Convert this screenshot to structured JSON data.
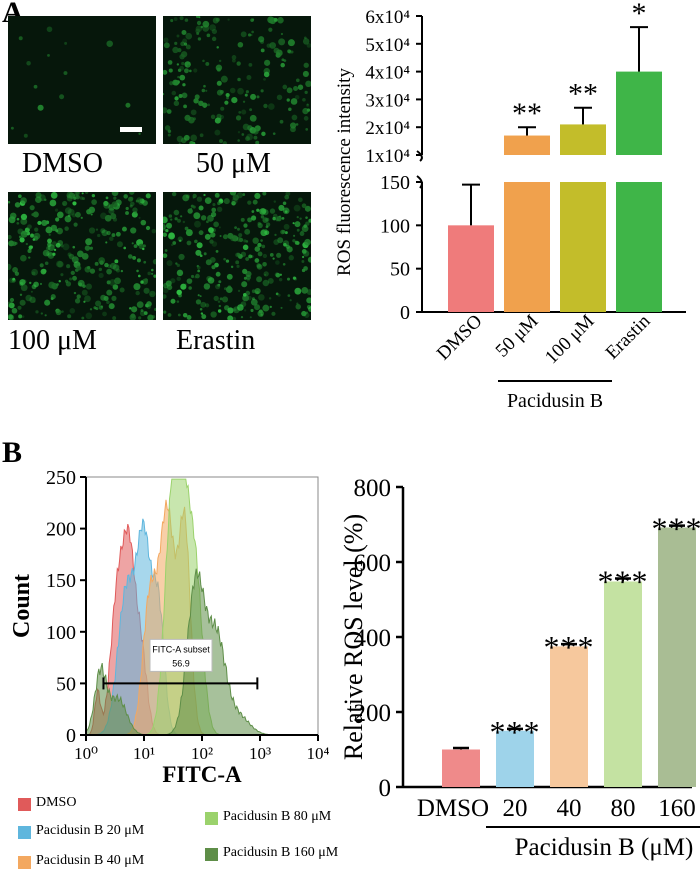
{
  "panelA": {
    "letter": "A",
    "images": [
      {
        "label": "DMSO",
        "density": 0.03,
        "scale_bar": true
      },
      {
        "label": "50 μM",
        "density": 0.55
      },
      {
        "label": "100 μM",
        "density": 0.8
      },
      {
        "label": "Erastin",
        "density": 0.85
      }
    ]
  },
  "panelB": {
    "letter": "B",
    "gate": {
      "label": "FITC-A subset",
      "value": "56.9"
    },
    "legend": [
      {
        "label": "DMSO",
        "color": "#e05a5a"
      },
      {
        "label": "Pacidusin B 20 μM",
        "color": "#5fb6dd"
      },
      {
        "label": "Pacidusin B 40 μM",
        "color": "#f3a860"
      },
      {
        "label": "Pacidusin B 80 μM",
        "color": "#9bd26c"
      },
      {
        "label": "Pacidusin B 160 μM",
        "color": "#5e8e48"
      }
    ]
  },
  "chart_data": [
    {
      "type": "bar",
      "id": "ros-intensity",
      "ylabel": "ROS fluorescence intensity",
      "categories": [
        "DMSO",
        "50 μM",
        "100 μM",
        "Erastin"
      ],
      "values": [
        100,
        17000,
        21000,
        40000
      ],
      "errors": [
        47,
        3000,
        6000,
        16000
      ],
      "colors": [
        "#ef7b7b",
        "#f0a14d",
        "#c3bd2a",
        "#3fb548"
      ],
      "significance": [
        "",
        "**",
        "**",
        "*"
      ],
      "lower_axis": {
        "ylim": [
          0,
          150
        ],
        "ticks": [
          "0",
          "50",
          "100",
          "150"
        ]
      },
      "upper_axis": {
        "ylim": [
          10000,
          60000
        ],
        "ticks": [
          "1x10⁴",
          "2x10⁴",
          "3x10⁴",
          "4x10⁴",
          "5x10⁴",
          "6x10⁴"
        ]
      },
      "group_label": "Pacidusin B",
      "group_members": [
        "50 μM",
        "100 μM"
      ]
    },
    {
      "type": "area",
      "id": "flow-histogram",
      "xlabel": "FITC-A",
      "ylabel": "Count",
      "xscale": "log",
      "xlim": [
        1,
        10000
      ],
      "ylim": [
        0,
        250
      ],
      "xticks": [
        "10⁰",
        "10¹",
        "10²",
        "10³",
        "10⁴"
      ],
      "yticks": [
        "0",
        "50",
        "100",
        "150",
        "200",
        "250"
      ],
      "gate_range": [
        2,
        900
      ],
      "series": [
        {
          "name": "DMSO",
          "color": "#e05a5a",
          "peaks": [
            {
              "log": 0.2,
              "h": 40,
              "w": 0.05
            },
            {
              "log": 0.55,
              "h": 140,
              "w": 0.12
            },
            {
              "log": 0.75,
              "h": 150,
              "w": 0.1
            },
            {
              "log": 0.95,
              "h": 80,
              "w": 0.1
            }
          ]
        },
        {
          "name": "Pacidusin B 20 μM",
          "color": "#5fb6dd",
          "peaks": [
            {
              "log": 0.7,
              "h": 140,
              "w": 0.15
            },
            {
              "log": 1.0,
              "h": 180,
              "w": 0.12
            },
            {
              "log": 1.25,
              "h": 120,
              "w": 0.1
            }
          ]
        },
        {
          "name": "Pacidusin B 40 μM",
          "color": "#f3a860",
          "peaks": [
            {
              "log": 1.1,
              "h": 130,
              "w": 0.12
            },
            {
              "log": 1.4,
              "h": 215,
              "w": 0.13
            },
            {
              "log": 1.7,
              "h": 200,
              "w": 0.1
            }
          ]
        },
        {
          "name": "Pacidusin B 80 μM",
          "color": "#9bd26c",
          "peaks": [
            {
              "log": 1.45,
              "h": 150,
              "w": 0.12
            },
            {
              "log": 1.65,
              "h": 225,
              "w": 0.14
            },
            {
              "log": 1.9,
              "h": 130,
              "w": 0.12
            }
          ]
        },
        {
          "name": "Pacidusin B 160 μM",
          "color": "#5e8e48",
          "peaks": [
            {
              "log": 0.25,
              "h": 60,
              "w": 0.1
            },
            {
              "log": 0.55,
              "h": 35,
              "w": 0.15
            },
            {
              "log": 1.9,
              "h": 150,
              "w": 0.15
            },
            {
              "log": 2.25,
              "h": 90,
              "w": 0.15
            },
            {
              "log": 2.6,
              "h": 20,
              "w": 0.2
            }
          ]
        }
      ]
    },
    {
      "type": "bar",
      "id": "relative-ros",
      "ylabel": "Relative  ROS level (%)",
      "categories": [
        "DMSO",
        "20",
        "40",
        "80",
        "160"
      ],
      "values": [
        100,
        150,
        375,
        548,
        692
      ],
      "errors": [
        4,
        5,
        6,
        8,
        5
      ],
      "colors": [
        "#ef8a8a",
        "#9ed3ea",
        "#f6c89d",
        "#c4e2a2",
        "#a9bd94"
      ],
      "significance": [
        "",
        "***",
        "***",
        "***",
        "***"
      ],
      "ylim": [
        0,
        800
      ],
      "yticks": [
        "0",
        "200",
        "400",
        "600",
        "800"
      ],
      "group_label": "Pacidusin B (μM)"
    }
  ]
}
